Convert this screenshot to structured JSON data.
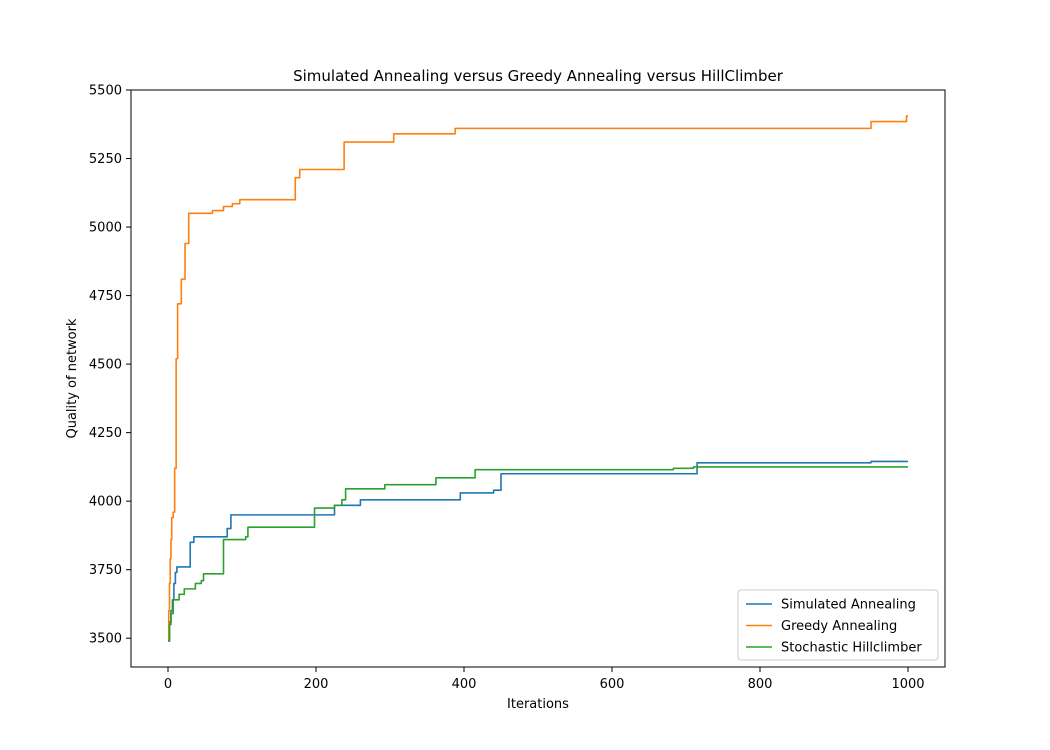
{
  "chart_data": {
    "type": "line",
    "title": "Simulated Annealing versus Greedy Annealing versus HillClimber",
    "xlabel": "Iterations",
    "ylabel": "Quality of network",
    "xlim": [
      -50,
      1050
    ],
    "ylim": [
      3395,
      5500
    ],
    "xticks": [
      0,
      200,
      400,
      600,
      800,
      1000
    ],
    "yticks": [
      3500,
      3750,
      4000,
      4250,
      4500,
      4750,
      5000,
      5250,
      5500
    ],
    "grid": false,
    "legend_position": "lower-right",
    "series": [
      {
        "name": "Simulated Annealing",
        "color": "#1f77b4",
        "step": true,
        "points": [
          [
            0,
            3490
          ],
          [
            2,
            3560
          ],
          [
            4,
            3600
          ],
          [
            6,
            3640
          ],
          [
            8,
            3700
          ],
          [
            10,
            3740
          ],
          [
            12,
            3760
          ],
          [
            30,
            3850
          ],
          [
            35,
            3870
          ],
          [
            80,
            3900
          ],
          [
            85,
            3950
          ],
          [
            225,
            3985
          ],
          [
            260,
            4005
          ],
          [
            395,
            4030
          ],
          [
            440,
            4040
          ],
          [
            450,
            4100
          ],
          [
            715,
            4140
          ],
          [
            950,
            4145
          ],
          [
            1000,
            4145
          ]
        ]
      },
      {
        "name": "Greedy Annealing",
        "color": "#ff7f0e",
        "step": true,
        "points": [
          [
            0,
            3490
          ],
          [
            1,
            3600
          ],
          [
            2,
            3700
          ],
          [
            3,
            3790
          ],
          [
            4,
            3860
          ],
          [
            5,
            3940
          ],
          [
            7,
            3960
          ],
          [
            9,
            4120
          ],
          [
            11,
            4520
          ],
          [
            13,
            4720
          ],
          [
            18,
            4810
          ],
          [
            23,
            4940
          ],
          [
            28,
            5050
          ],
          [
            60,
            5060
          ],
          [
            75,
            5075
          ],
          [
            87,
            5085
          ],
          [
            97,
            5100
          ],
          [
            172,
            5180
          ],
          [
            178,
            5210
          ],
          [
            238,
            5310
          ],
          [
            305,
            5340
          ],
          [
            388,
            5360
          ],
          [
            950,
            5385
          ],
          [
            998,
            5405
          ],
          [
            1000,
            5405
          ]
        ]
      },
      {
        "name": "Stochastic Hillclimber",
        "color": "#2ca02c",
        "step": true,
        "points": [
          [
            0,
            3490
          ],
          [
            2,
            3550
          ],
          [
            4,
            3590
          ],
          [
            7,
            3640
          ],
          [
            15,
            3660
          ],
          [
            22,
            3680
          ],
          [
            37,
            3700
          ],
          [
            45,
            3710
          ],
          [
            48,
            3735
          ],
          [
            75,
            3860
          ],
          [
            105,
            3870
          ],
          [
            108,
            3905
          ],
          [
            198,
            3975
          ],
          [
            225,
            3985
          ],
          [
            235,
            4005
          ],
          [
            240,
            4045
          ],
          [
            293,
            4060
          ],
          [
            362,
            4085
          ],
          [
            415,
            4115
          ],
          [
            683,
            4120
          ],
          [
            710,
            4125
          ],
          [
            1000,
            4125
          ]
        ]
      }
    ]
  }
}
